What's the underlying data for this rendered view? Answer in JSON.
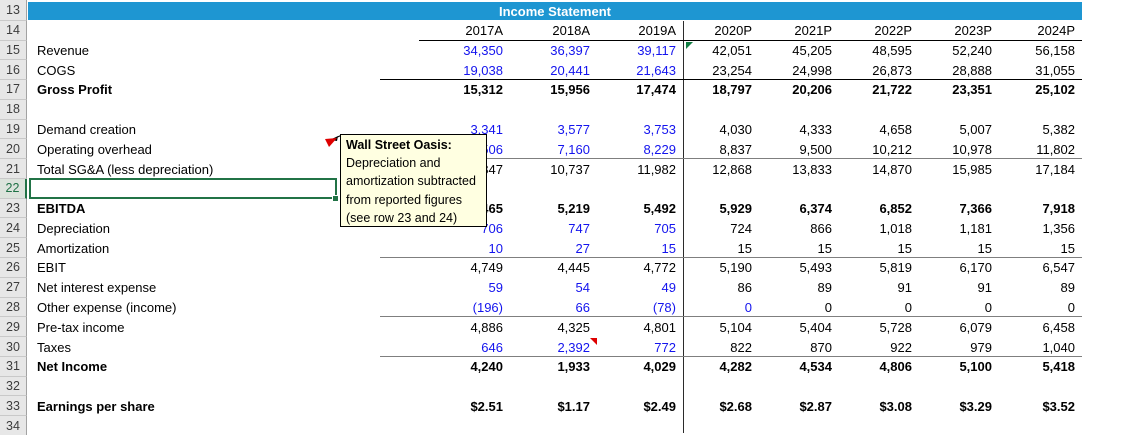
{
  "sheet": {
    "title": "Income Statement",
    "row_numbers": [
      13,
      14,
      15,
      16,
      17,
      18,
      19,
      20,
      21,
      22,
      23,
      24,
      25,
      26,
      27,
      28,
      29,
      30,
      31,
      32,
      33,
      34
    ],
    "selected_row": 22,
    "columns": [
      "2017A",
      "2018A",
      "2019A",
      "2020P",
      "2021P",
      "2022P",
      "2023P",
      "2024P"
    ],
    "rows": [
      {
        "num": 15,
        "label": "Revenue",
        "blue": 3,
        "values": [
          "34,350",
          "36,397",
          "39,117",
          "42,051",
          "45,205",
          "48,595",
          "52,240",
          "56,158"
        ]
      },
      {
        "num": 16,
        "label": "COGS",
        "blue": 3,
        "rule": "black",
        "values": [
          "19,038",
          "20,441",
          "21,643",
          "23,254",
          "24,998",
          "26,873",
          "28,888",
          "31,055"
        ]
      },
      {
        "num": 17,
        "label": "Gross Profit",
        "bold": true,
        "blue": 0,
        "values": [
          "15,312",
          "15,956",
          "17,474",
          "18,797",
          "20,206",
          "21,722",
          "23,351",
          "25,102"
        ]
      },
      {
        "num": 19,
        "label": "Demand creation",
        "blue": 3,
        "values": [
          "3,341",
          "3,577",
          "3,753",
          "4,030",
          "4,333",
          "4,658",
          "5,007",
          "5,382"
        ]
      },
      {
        "num": 20,
        "label": "Operating overhead",
        "blue": 3,
        "rule": "gray",
        "values": [
          "6,506",
          "7,160",
          "8,229",
          "8,837",
          "9,500",
          "10,212",
          "10,978",
          "11,802"
        ]
      },
      {
        "num": 21,
        "label": "Total SG&A (less depreciation)",
        "blue": 0,
        "values": [
          "9,847",
          "10,737",
          "11,982",
          "12,868",
          "13,833",
          "14,870",
          "15,985",
          "17,184"
        ]
      },
      {
        "num": 23,
        "label": "EBITDA",
        "bold": true,
        "blue": 0,
        "values": [
          "5,465",
          "5,219",
          "5,492",
          "5,929",
          "6,374",
          "6,852",
          "7,366",
          "7,918"
        ]
      },
      {
        "num": 24,
        "label": "Depreciation",
        "blue": 3,
        "values": [
          "706",
          "747",
          "705",
          "724",
          "866",
          "1,018",
          "1,181",
          "1,356"
        ]
      },
      {
        "num": 25,
        "label": "Amortization",
        "blue": 3,
        "rule": "gray",
        "values": [
          "10",
          "27",
          "15",
          "15",
          "15",
          "15",
          "15",
          "15"
        ]
      },
      {
        "num": 26,
        "label": "EBIT",
        "blue": 0,
        "values": [
          "4,749",
          "4,445",
          "4,772",
          "5,190",
          "5,493",
          "5,819",
          "6,170",
          "6,547"
        ]
      },
      {
        "num": 27,
        "label": "Net interest expense",
        "blue": 3,
        "values": [
          "59",
          "54",
          "49",
          "86",
          "89",
          "91",
          "91",
          "89"
        ]
      },
      {
        "num": 28,
        "label": "Other expense (income)",
        "blue": 4,
        "rule": "gray",
        "values": [
          "(196)",
          "66",
          "(78)",
          "0",
          "0",
          "0",
          "0",
          "0"
        ]
      },
      {
        "num": 29,
        "label": "Pre-tax income",
        "blue": 0,
        "values": [
          "4,886",
          "4,325",
          "4,801",
          "5,104",
          "5,404",
          "5,728",
          "6,079",
          "6,458"
        ]
      },
      {
        "num": 30,
        "label": "Taxes",
        "blue": 3,
        "rule": "gray",
        "red_flag_col": 2,
        "values": [
          "646",
          "2,392",
          "772",
          "822",
          "870",
          "922",
          "979",
          "1,040"
        ]
      },
      {
        "num": 31,
        "label": "Net Income",
        "bold": true,
        "blue": 0,
        "values": [
          "4,240",
          "1,933",
          "4,029",
          "4,282",
          "4,534",
          "4,806",
          "5,100",
          "5,418"
        ]
      },
      {
        "num": 33,
        "label": "Earnings per share",
        "bold": true,
        "blue": 0,
        "values": [
          "$2.51",
          "$1.17",
          "$2.49",
          "$2.68",
          "$2.87",
          "$3.08",
          "$3.29",
          "$3.52"
        ]
      }
    ]
  },
  "comment": {
    "title": "Wall Street Oasis:",
    "lines": [
      "Depreciation and",
      "amortization subtracted",
      "from reported figures",
      "(see row 23 and 24)"
    ]
  },
  "icons": {
    "cell_comment_indicator": "red corner triangle",
    "formula_error_indicator": "green corner triangle"
  },
  "colors": {
    "banner_blue": "#1E96D2",
    "input_blue": "#1414EE",
    "rule_gray": "#7F7F7F",
    "rule_black": "#000000",
    "selection_green": "#217346",
    "comment_bg": "#FFFFE1",
    "flag_red": "#DE0000",
    "flag_green": "#107C41"
  }
}
